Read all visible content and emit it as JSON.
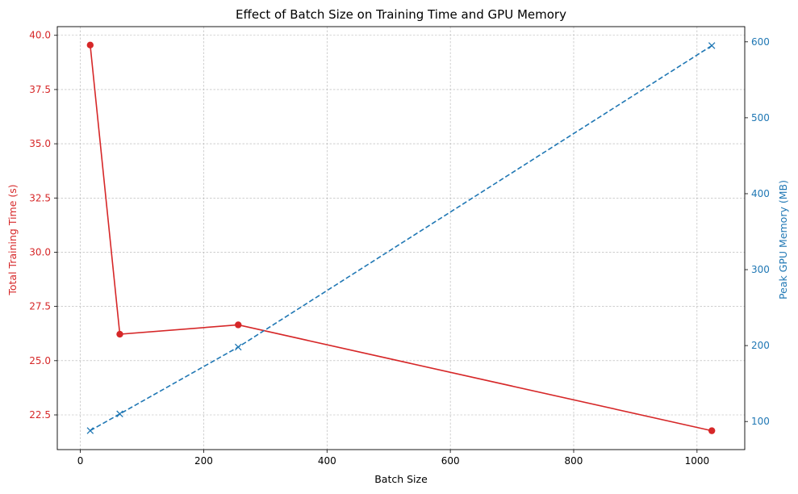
{
  "chart_data": {
    "type": "line",
    "title": "Effect of Batch Size on Training Time and GPU Memory",
    "xlabel": "Batch Size",
    "x": [
      16,
      64,
      256,
      1024
    ],
    "xlim": [
      -37.4,
      1077.4
    ],
    "xticks": [
      0,
      200,
      400,
      600,
      800,
      1000
    ],
    "grid": true,
    "series": [
      {
        "name": "Total Training Time (s)",
        "axis": "left",
        "color": "#d62728",
        "linestyle": "solid",
        "marker": "circle",
        "values": [
          39.55,
          26.22,
          26.65,
          21.77
        ]
      },
      {
        "name": "Peak GPU Memory (MB)",
        "axis": "right",
        "color": "#1f77b4",
        "linestyle": "dashed",
        "marker": "x",
        "values": [
          88,
          110,
          198,
          595
        ]
      }
    ],
    "y_left": {
      "label": "Total Training Time (s)",
      "color": "#d62728",
      "lim": [
        20.9,
        40.4
      ],
      "ticks": [
        22.5,
        25.0,
        27.5,
        30.0,
        32.5,
        35.0,
        37.5,
        40.0
      ],
      "tick_labels": [
        "22.5",
        "25.0",
        "27.5",
        "30.0",
        "32.5",
        "35.0",
        "37.5",
        "40.0"
      ]
    },
    "y_right": {
      "label": "Peak GPU Memory (MB)",
      "color": "#1f77b4",
      "lim": [
        63,
        620
      ],
      "ticks": [
        100,
        200,
        300,
        400,
        500,
        600
      ],
      "tick_labels": [
        "100",
        "200",
        "300",
        "400",
        "500",
        "600"
      ]
    }
  }
}
